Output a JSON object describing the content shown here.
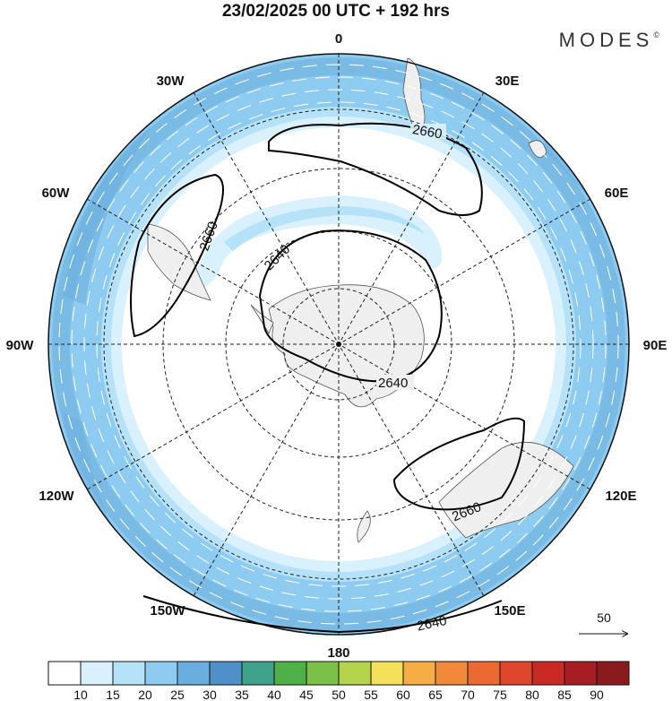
{
  "header": {
    "title": "23/02/2025  00 UTC  + 192 hrs",
    "brand": "MODES",
    "brand_mark": "©"
  },
  "map": {
    "projection": "south polar stereographic",
    "meridian_labels": {
      "m0": "0",
      "m30e": "30E",
      "m60e": "60E",
      "m90e": "90E",
      "m120e": "120E",
      "m150e": "150E",
      "m180": "180",
      "m150w": "150W",
      "m120w": "120W",
      "m90w": "90W",
      "m60w": "60W",
      "m30w": "30W"
    },
    "contour_labels": {
      "c2660_atlantic": "2660",
      "c2660_pacific": "2660",
      "c2660_australia": "2660",
      "c2640_inner_left": "2640",
      "c2640_inner_right": "2640",
      "c2640_edge": "2640"
    },
    "colors": {
      "land": "#efefef",
      "coast": "#555555",
      "graticule": "#222222",
      "contour": "#000000"
    }
  },
  "reference_vector": {
    "label": "50"
  },
  "colorbar": {
    "labels": [
      "10",
      "15",
      "20",
      "25",
      "30",
      "35",
      "40",
      "45",
      "50",
      "55",
      "60",
      "65",
      "70",
      "75",
      "80",
      "85",
      "90"
    ],
    "colors": [
      "#ffffff",
      "#d9f1fc",
      "#b5e2f8",
      "#8ecbf0",
      "#6aaedf",
      "#4e90c7",
      "#3fa38a",
      "#4fb04a",
      "#7bc047",
      "#b4d44b",
      "#f5e05a",
      "#f6ad45",
      "#f08a3a",
      "#ec6a31",
      "#e0462c",
      "#c92a26",
      "#a71d24",
      "#8b1a1c"
    ]
  }
}
